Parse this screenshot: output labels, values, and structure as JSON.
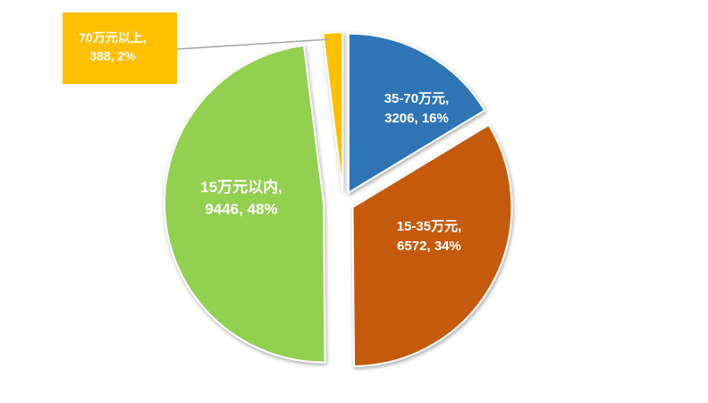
{
  "chart_data": {
    "type": "pie",
    "exploded": true,
    "slices": [
      {
        "label": "35-70万元",
        "value": 3206,
        "percent": "16%",
        "color": "#2E75B6",
        "label_line1": "35-70万元,",
        "label_line2": "3206, 16%"
      },
      {
        "label": "15-35万元",
        "value": 6572,
        "percent": "34%",
        "color": "#C55A11",
        "label_line1": "15-35万元,",
        "label_line2": "6572, 34%"
      },
      {
        "label": "15万元以内",
        "value": 9446,
        "percent": "48%",
        "color": "#92D050",
        "label_line1": "15万元以内,",
        "label_line2": "9446, 48%"
      },
      {
        "label": "70万元以上",
        "value": 388,
        "percent": "2%",
        "color": "#FFC000",
        "label_line1": "70万元以上,",
        "label_line2": "388, 2%"
      }
    ]
  }
}
